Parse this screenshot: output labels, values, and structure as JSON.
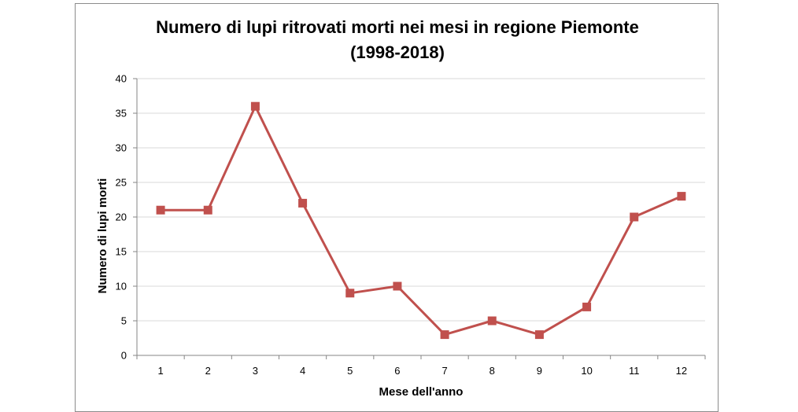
{
  "chart_data": {
    "type": "line",
    "title": "Numero di lupi ritrovati morti nei mesi in regione Piemonte",
    "subtitle": "(1998-2018)",
    "xlabel": "Mese dell'anno",
    "ylabel": "Numero di lupi morti",
    "categories": [
      "1",
      "2",
      "3",
      "4",
      "5",
      "6",
      "7",
      "8",
      "9",
      "10",
      "11",
      "12"
    ],
    "values": [
      21,
      21,
      36,
      22,
      9,
      10,
      3,
      5,
      3,
      7,
      20,
      23
    ],
    "ylim": [
      0,
      40
    ],
    "yticks": [
      0,
      5,
      10,
      15,
      20,
      25,
      30,
      35,
      40
    ],
    "grid": "horizontal",
    "legend": "none",
    "marker": "square",
    "colors": {
      "series": "#c0504d",
      "grid": "#d9d9d9",
      "axis": "#868686"
    }
  }
}
